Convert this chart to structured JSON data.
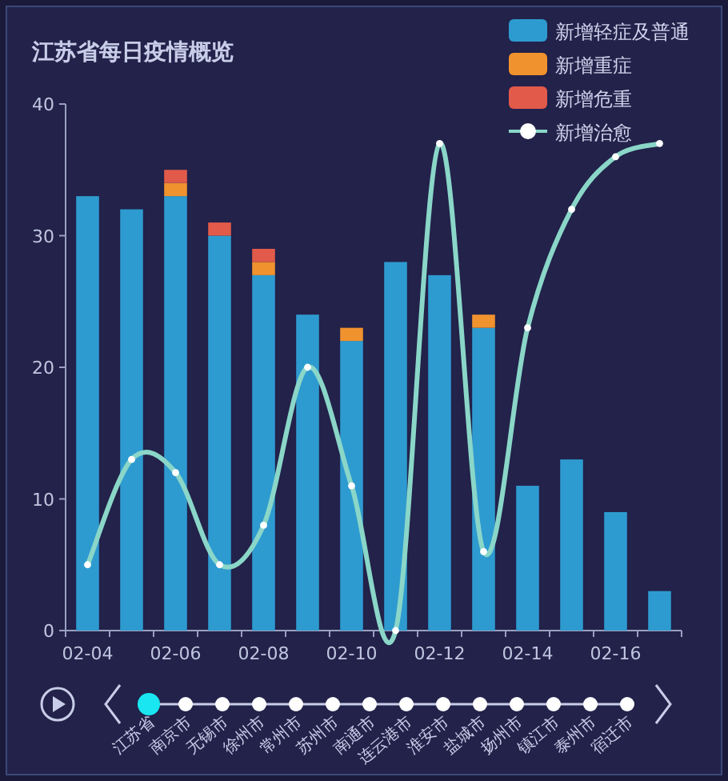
{
  "chart_data": {
    "type": "bar",
    "title": "江苏省每日疫情概览",
    "categories": [
      "02-04",
      null,
      "02-06",
      null,
      "02-08",
      null,
      "02-10",
      null,
      "02-12",
      null,
      "02-14",
      null,
      "02-16",
      null
    ],
    "series": [
      {
        "name": "新增轻症及普通",
        "color": "#2e9bd0",
        "values": [
          33,
          32,
          33,
          30,
          27,
          24,
          22,
          28,
          27,
          23,
          11,
          13,
          9,
          3
        ]
      },
      {
        "name": "新增重症",
        "color": "#f0922e",
        "values": [
          0,
          0,
          1,
          0,
          1,
          0,
          1,
          0,
          0,
          1,
          0,
          0,
          0,
          0
        ]
      },
      {
        "name": "新增危重",
        "color": "#e25a4a",
        "values": [
          0,
          0,
          1,
          1,
          1,
          0,
          0,
          0,
          0,
          0,
          0,
          0,
          0,
          0
        ]
      },
      {
        "name": "新增治愈",
        "type": "line",
        "color": "#8ad6c8",
        "values": [
          5,
          13,
          12,
          5,
          8,
          20,
          11,
          0,
          37,
          6,
          23,
          32,
          36,
          37
        ]
      }
    ],
    "stacked": true,
    "ylim": [
      0,
      40
    ],
    "yticks": [
      0,
      10,
      20,
      30,
      40
    ],
    "legend": "top right",
    "marker": "circle",
    "annotations": [
      "江苏省",
      "南京市",
      "无锡市",
      "徐州市",
      "常州市",
      "苏州市",
      "南通市",
      "连云港市",
      "淮安市",
      "盐城市",
      "扬州市",
      "镇江市",
      "泰州市",
      "宿迁市"
    ]
  }
}
